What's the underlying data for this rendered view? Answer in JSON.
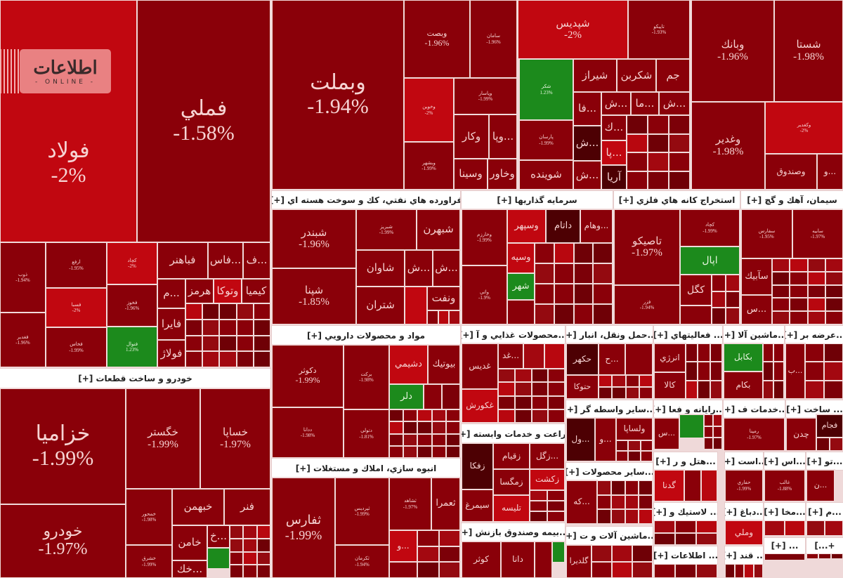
{
  "logo": {
    "arabic": "اطلاعات",
    "latin": "- ONLINE -"
  },
  "sectors": {
    "auto": "خودرو و ساخت قطعات [+]",
    "oil": "فراورده هاي نفتي، كك و سوخت هسته اي [+]",
    "invest": "سرمايه گذاريها [+]",
    "mining": "استخراج كانه هاي فلزي [+]",
    "cement": "سيمان، آهك و گچ [+]",
    "pharma": "مواد و محصولات دارويي [+]",
    "mass": "انبوه سازي، املاك و مستغلات [+]",
    "food": "...محصولات غذايي و آ [+]",
    "transport": "...حمل ونقل، انبار [+]",
    "activities": "... فعاليتهاي [+]",
    "machinery": "...ماشين آلا [+]",
    "supply": "...عرضه بر [+]",
    "agri": "زراعت و خدمات وابسته [+]",
    "other_broker": "...ساير واسطه گر [+]",
    "computer": "...رايانه و فعا [+]",
    "services": "...خدمات ف [+]",
    "construct": "... ساخت [+]",
    "hotel": "...هتل و ر [+]",
    "est": "...است [+]",
    "as": "...اس [+]",
    "to": "...تو [+]",
    "other_products": "...ساير محصولات [+]",
    "rubber": "... لاستيك و [+]",
    "tanning": "...دباغ [+]",
    "mkha": "...مخا [+]",
    "m": "...م [+]",
    "insurance": "...بيمه وصندوق بازنش [+]",
    "machinery2": "...ماشين آلات و ت [+]",
    "info": "... اطلاعات [+]",
    "sugar": "... قند [+]",
    "misc1": "... [+]",
    "misc2": "+...]"
  },
  "stocks": {
    "foolad": {
      "s": "فولاد",
      "p": "-2%"
    },
    "fameli": {
      "s": "فملي",
      "p": "-1.58%"
    },
    "zob": {
      "s": "ذوب",
      "p": "-1.94%"
    },
    "arfa": {
      "s": "ارفع",
      "p": "-1.95%"
    },
    "kachad": {
      "s": "كچاد",
      "p": "-2%"
    },
    "khuz": {
      "s": "فخوز",
      "p": "-1.96%"
    },
    "ksaba": {
      "s": "فسبا",
      "p": "-2%"
    },
    "kheraz": {
      "s": "فخاس",
      "p": "-1.99%"
    },
    "fghadir": {
      "s": "فغدير",
      "p": "-1.96%"
    },
    "fnabes": {
      "s": "فنوال",
      "p": "1.23%"
    },
    "fabahonar": {
      "s": "فباهنر"
    },
    "fas": {
      "s": "...فاس"
    },
    "f3": {
      "s": "...ف"
    },
    "m1": {
      "s": "...م"
    },
    "hormoz": {
      "s": "هرمز"
    },
    "vtooka": {
      "s": "وتوكا"
    },
    "kimia": {
      "s": "كيميا"
    },
    "faira": {
      "s": "فايرا"
    },
    "foolaj": {
      "s": "فولاژ"
    },
    "khazamia": {
      "s": "خزاميا",
      "p": "-1.99%"
    },
    "khodro": {
      "s": "خودرو",
      "p": "-1.97%"
    },
    "khgostar": {
      "s": "خگستر",
      "p": "-1.99%"
    },
    "khsapa": {
      "s": "خساپا",
      "p": "-1.97%"
    },
    "khmehvar": {
      "s": "خمحور",
      "p": "-1.98%"
    },
    "khbahman": {
      "s": "خبهمن"
    },
    "fanar": {
      "s": "فنر"
    },
    "khamen": {
      "s": "خامن"
    },
    "kh3": {
      "s": "...خ"
    },
    "khshargh": {
      "s": "خشرق",
      "p": "-1.99%"
    },
    "khak": {
      "s": "...خك"
    },
    "vbmellat": {
      "s": "وبملت",
      "p": "-1.94%"
    },
    "vbsat": {
      "s": "وبصت",
      "p": "-1.96%"
    },
    "saman": {
      "s": "سامان",
      "p": "-1.96%"
    },
    "vkhavin": {
      "s": "وخوين",
      "p": "-2%"
    },
    "bimeh": {
      "s": "وپاسار",
      "p": "-1.99%"
    },
    "vkar": {
      "s": "وكار"
    },
    "vpa": {
      "s": "...وپا"
    },
    "vsina": {
      "s": "وسينا"
    },
    "vkhavar": {
      "s": "وخاور"
    },
    "vpasar": {
      "s": "وبشهر",
      "p": "-1.99%"
    },
    "shpdis": {
      "s": "شپديس",
      "p": "-2%"
    },
    "tapiko": {
      "s": "تاپيكو",
      "p": "-1.93%"
    },
    "shekar": {
      "s": "شكر",
      "p": "1.23%"
    },
    "parsan": {
      "s": "پارسان",
      "p": "-1.99%"
    },
    "shiraz": {
      "s": "شيراز"
    },
    "shekarbon": {
      "s": "شكربن"
    },
    "jam": {
      "s": "جم"
    },
    "fa": {
      "s": "...فا"
    },
    "sh1": {
      "s": "...ش"
    },
    "ma": {
      "s": "...ما"
    },
    "sh2": {
      "s": "...ش"
    },
    "k1": {
      "s": "...ك"
    },
    "sh3": {
      "s": "...ش"
    },
    "pa": {
      "s": "...پا"
    },
    "sh4": {
      "s": "...ش"
    },
    "arya": {
      "s": "آريا"
    },
    "shavandeh": {
      "s": "شوينده"
    },
    "vbank": {
      "s": "وبانك",
      "p": "-1.96%"
    },
    "shasta": {
      "s": "شستا",
      "p": "-1.98%"
    },
    "vghadir": {
      "s": "وغدير",
      "p": "-1.98%"
    },
    "vkghadir": {
      "s": "وكغدير",
      "p": "-2%"
    },
    "vsandoogh": {
      "s": "وصندوق"
    },
    "v1": {
      "s": "...و"
    },
    "shbandar": {
      "s": "شبندر",
      "p": "-1.96%"
    },
    "shpna": {
      "s": "شپنا",
      "p": "-1.85%"
    },
    "shbriz": {
      "s": "شبريز",
      "p": "-1.99%"
    },
    "shbhrn": {
      "s": "شبهرن"
    },
    "shavan": {
      "s": "شاوان"
    },
    "sh5": {
      "s": "...ش"
    },
    "sh6": {
      "s": "...ش"
    },
    "shtran": {
      "s": "شتران"
    },
    "vnaft": {
      "s": "ونفت"
    },
    "vkharazm": {
      "s": "وخارزم",
      "p": "-1.99%"
    },
    "vbani": {
      "s": "واتي",
      "p": "-1.9%"
    },
    "vsepehr": {
      "s": "وسپهر"
    },
    "datam": {
      "s": "داتام"
    },
    "vham": {
      "s": "...وهام"
    },
    "vsepah": {
      "s": "وسپه"
    },
    "shahr": {
      "s": "شهر"
    },
    "tasiko": {
      "s": "تاصيكو",
      "p": "-1.97%"
    },
    "fzar": {
      "s": "فزر",
      "p": "-1.94%"
    },
    "kchad2": {
      "s": "كچاد",
      "p": "-1.99%"
    },
    "apal": {
      "s": "اپال"
    },
    "kgol": {
      "s": "كگل"
    },
    "sfars": {
      "s": "سفارس",
      "p": "-1.95%"
    },
    "sarbeh": {
      "s": "سابيه",
      "p": "-1.97%"
    },
    "sabik": {
      "s": "سآبيك"
    },
    "s1": {
      "s": "...س"
    },
    "dkosar": {
      "s": "دكوثر",
      "p": "-1.99%"
    },
    "barkat": {
      "s": "بركت",
      "p": "-1.98%"
    },
    "ddana": {
      "s": "ددانا",
      "p": "-1.98%"
    },
    "dtoli": {
      "s": "دتولي",
      "p": "-1.81%"
    },
    "dshimi": {
      "s": "دشيمي"
    },
    "biotik": {
      "s": "بيوتيك"
    },
    "dlar": {
      "s": "دلر"
    },
    "sfars2": {
      "s": "ثفارس",
      "p": "-1.99%"
    },
    "spardis": {
      "s": "ثپرديس",
      "p": "-1.99%"
    },
    "sshahed": {
      "s": "ثشاهد",
      "p": "-1.97%"
    },
    "samra": {
      "s": "ثعمرا"
    },
    "skerman": {
      "s": "ثكرمان",
      "p": "-1.94%"
    },
    "sv": {
      "s": "...و"
    },
    "ghdis": {
      "s": "غديس"
    },
    "ghd": {
      "s": "...غد"
    },
    "ghkoorosh": {
      "s": "غكورش"
    },
    "zfka": {
      "s": "زفكا"
    },
    "zghiam": {
      "s": "زقيام"
    },
    "zkgol": {
      "s": "...زگل"
    },
    "zmgsa": {
      "s": "زمگسا"
    },
    "zkesht": {
      "s": "زكشت"
    },
    "simorgh": {
      "s": "سيمرغ"
    },
    "talisa": {
      "s": "تليسه"
    },
    "kosar": {
      "s": "كوثر"
    },
    "dana": {
      "s": "دانا"
    },
    "hkahar": {
      "s": "حكهر"
    },
    "h1": {
      "s": "...ح"
    },
    "htooka": {
      "s": "حتوكا"
    },
    "vol": {
      "s": "...ول"
    },
    "vo": {
      "s": "...و"
    },
    "vlsapa": {
      "s": "ولساپا"
    },
    "ke": {
      "s": "...كه"
    },
    "goldira": {
      "s": "گلديرا"
    },
    "energy": {
      "s": "انرژي"
    },
    "kala": {
      "s": "كالا"
    },
    "s2": {
      "s": "...س"
    },
    "gdna": {
      "s": "گدنا"
    },
    "bkabel": {
      "s": "بكابل"
    },
    "bkam": {
      "s": "بكام"
    },
    "b1": {
      "s": "...ب"
    },
    "rmpna": {
      "s": "رمپنا",
      "p": "-1.97%"
    },
    "chadan": {
      "s": "چدن"
    },
    "fjam": {
      "s": "فجام"
    },
    "vmeli": {
      "s": "وملي"
    },
    "ghatari": {
      "s": "حفاري",
      "p": "-1.99%"
    },
    "kheta": {
      "s": "غالب",
      "p": "-1.88%"
    },
    "n1": {
      "s": "...ن"
    }
  },
  "colors": {
    "negative": "#8a0009",
    "limit_down": "#c10710",
    "deep": "#4d0003",
    "positive": "#1c8a1c"
  }
}
